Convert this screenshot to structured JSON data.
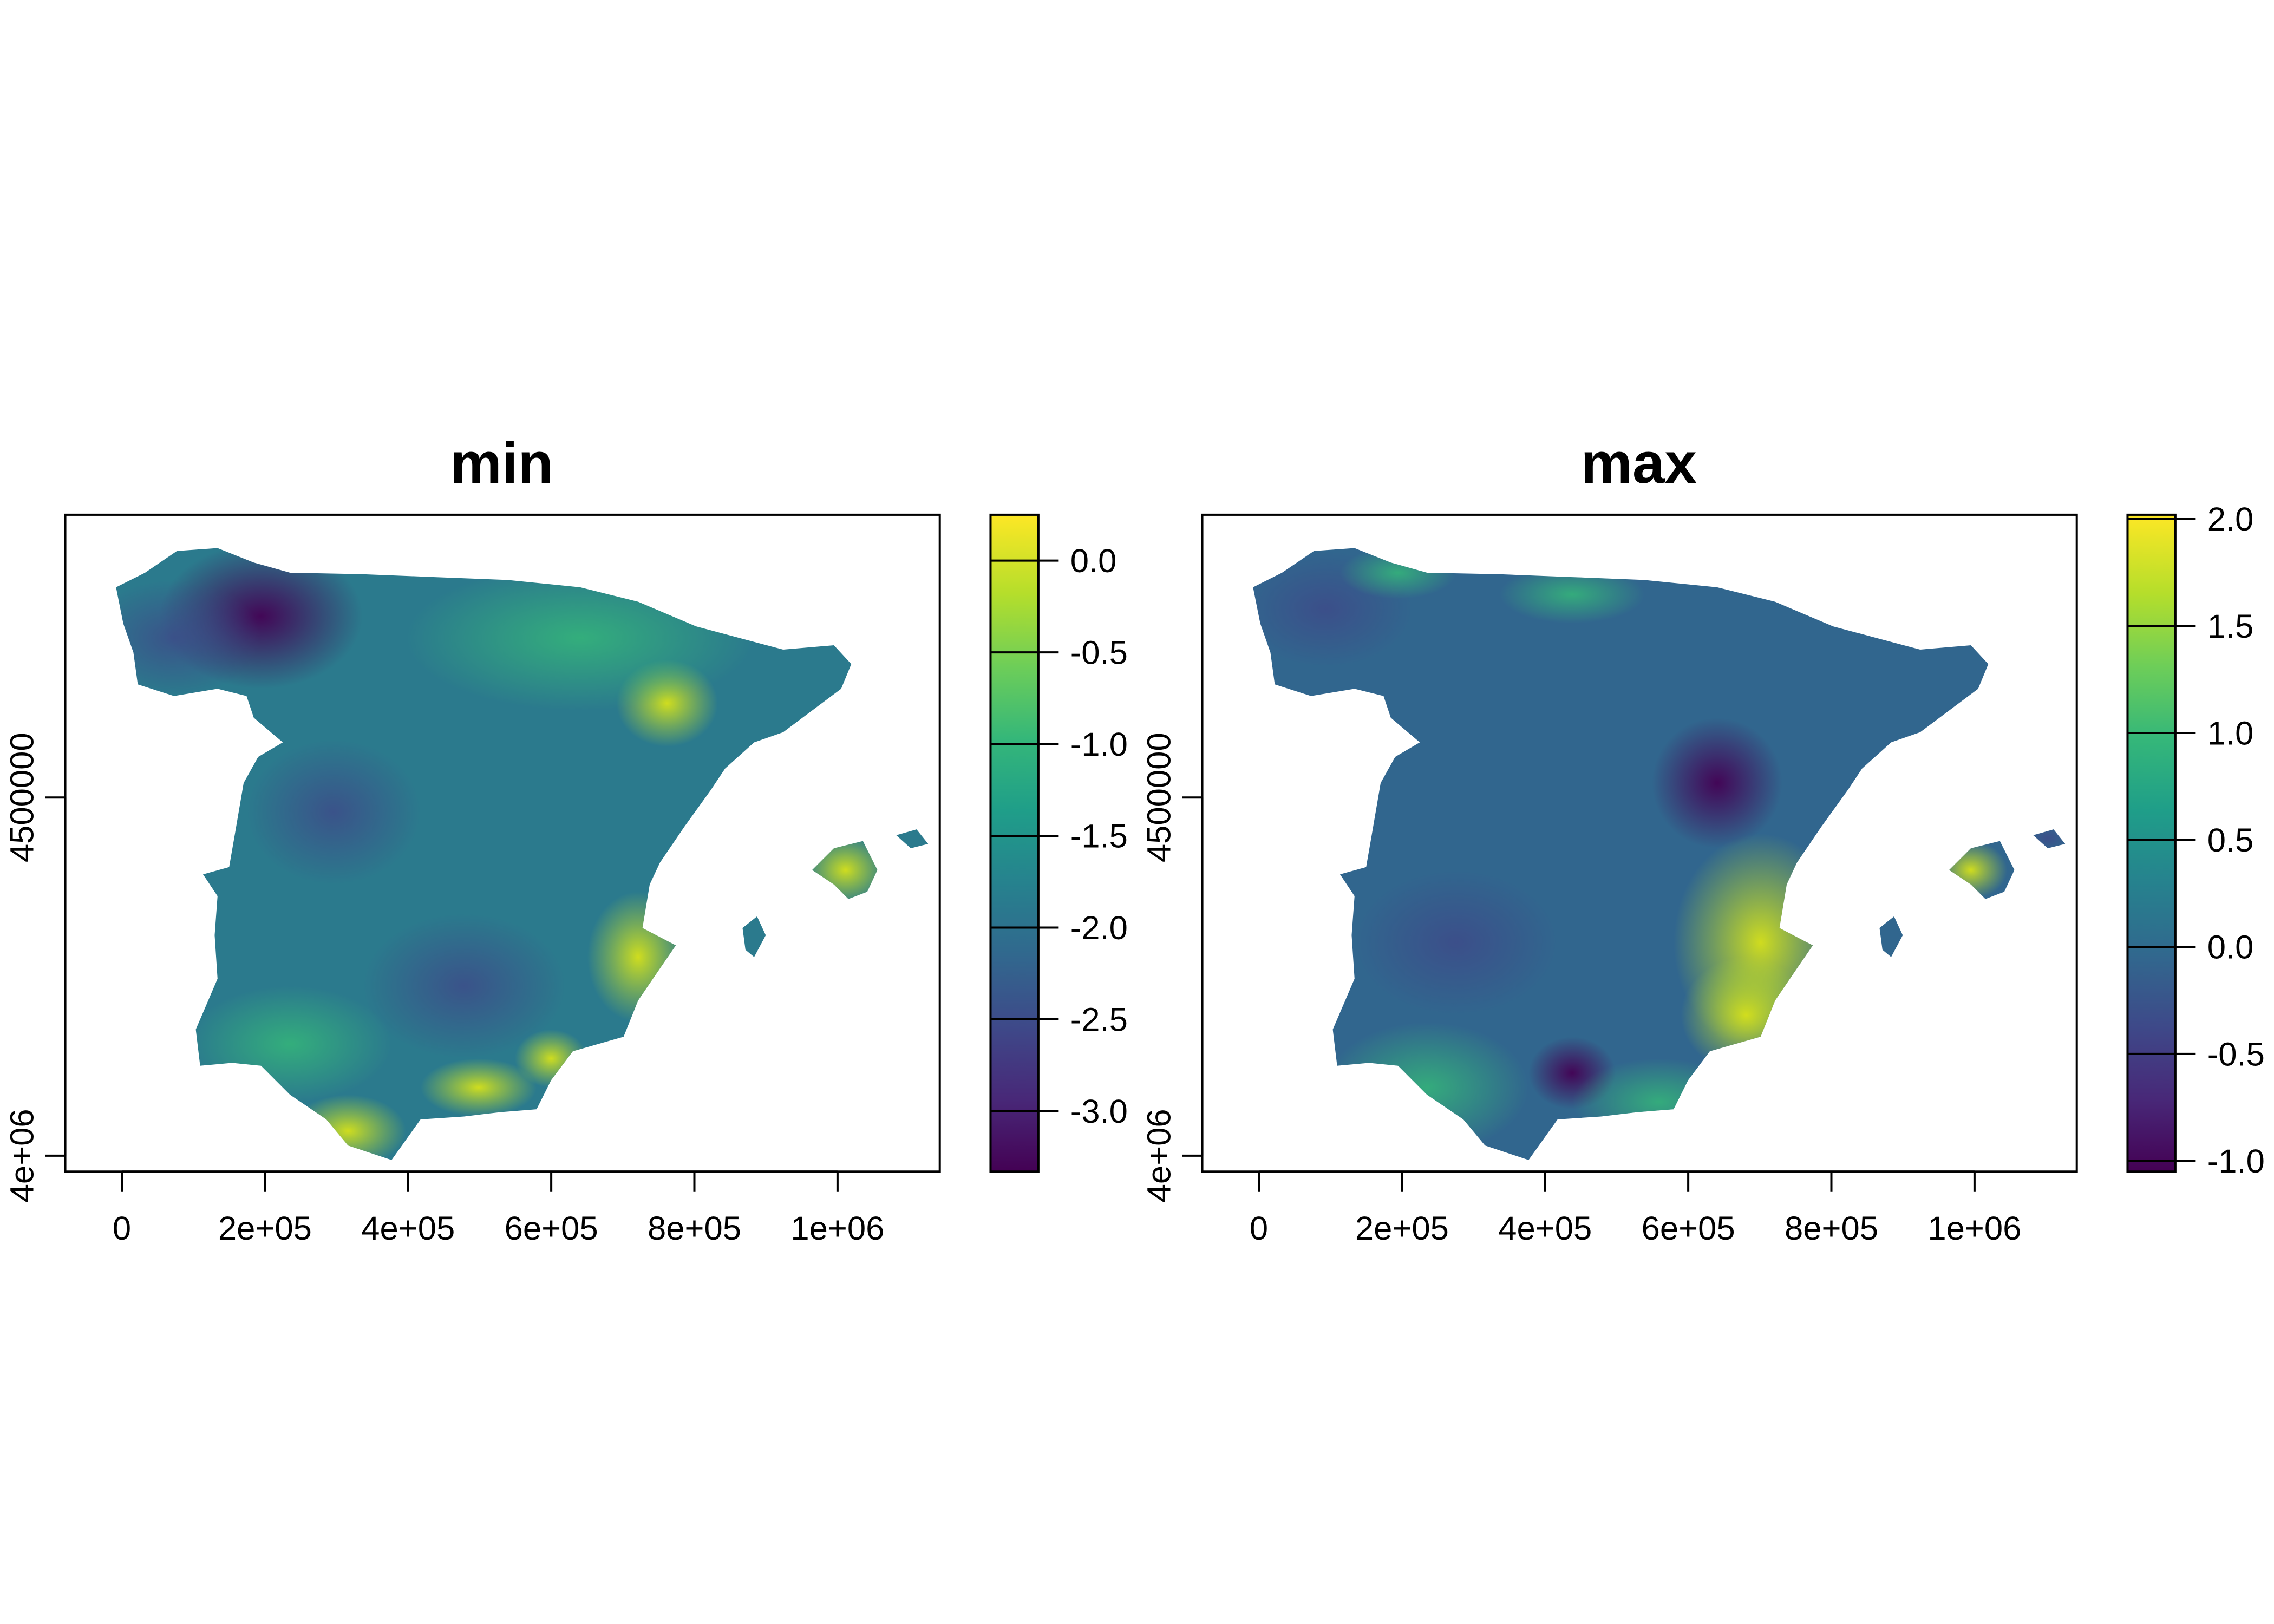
{
  "chart_data": [
    {
      "type": "heatmap",
      "title": "min",
      "xlabel": "",
      "ylabel": "",
      "x_ticks": [
        0,
        200000,
        400000,
        600000,
        800000,
        1000000
      ],
      "x_tick_labels": [
        "0",
        "2e+05",
        "4e+05",
        "6e+05",
        "8e+05",
        "1e+06"
      ],
      "y_ticks": [
        4500000,
        4000000
      ],
      "y_tick_labels": [
        "4500000",
        "4e+06"
      ],
      "colorbar": {
        "colormap": "viridis",
        "range": [
          -3.33,
          0.25
        ],
        "ticks": [
          0.0,
          -0.5,
          -1.0,
          -1.5,
          -2.0,
          -2.5,
          -3.0
        ],
        "tick_labels": [
          "0.0",
          "-0.5",
          "-1.0",
          "-1.5",
          "-2.0",
          "-2.5",
          "-3.0"
        ]
      },
      "grid": false
    },
    {
      "type": "heatmap",
      "title": "max",
      "xlabel": "",
      "ylabel": "",
      "x_ticks": [
        0,
        200000,
        400000,
        600000,
        800000,
        1000000
      ],
      "x_tick_labels": [
        "0",
        "2e+05",
        "4e+05",
        "6e+05",
        "8e+05",
        "1e+06"
      ],
      "y_ticks": [
        4500000,
        4000000
      ],
      "y_tick_labels": [
        "4500000",
        "4e+06"
      ],
      "colorbar": {
        "colormap": "viridis",
        "range": [
          -1.05,
          2.02
        ],
        "ticks": [
          2.0,
          1.5,
          1.0,
          0.5,
          0.0,
          -0.5,
          -1.0
        ],
        "tick_labels": [
          "2.0",
          "1.5",
          "1.0",
          "0.5",
          "0.0",
          "-0.5",
          "-1.0"
        ]
      },
      "grid": false
    }
  ],
  "colors": {
    "viridis": [
      "#440154",
      "#482878",
      "#3e4989",
      "#31688e",
      "#26828e",
      "#1f9e89",
      "#35b779",
      "#6ece58",
      "#b5de2b",
      "#fde725"
    ]
  }
}
